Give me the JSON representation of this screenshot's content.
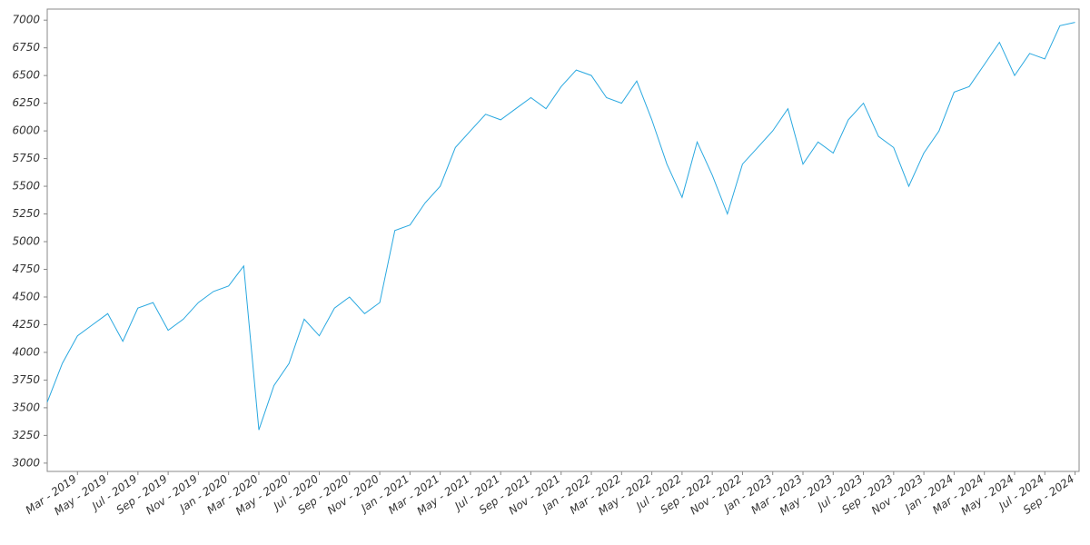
{
  "chart_data": {
    "type": "line",
    "color": "#29a8e0",
    "x": [
      "2019-01",
      "2019-02",
      "2019-03",
      "2019-04",
      "2019-05",
      "2019-06",
      "2019-07",
      "2019-08",
      "2019-09",
      "2019-10",
      "2019-11",
      "2019-12",
      "2020-01",
      "2020-02",
      "2020-03",
      "2020-04",
      "2020-05",
      "2020-06",
      "2020-07",
      "2020-08",
      "2020-09",
      "2020-10",
      "2020-11",
      "2020-12",
      "2021-01",
      "2021-02",
      "2021-03",
      "2021-04",
      "2021-05",
      "2021-06",
      "2021-07",
      "2021-08",
      "2021-09",
      "2021-10",
      "2021-11",
      "2021-12",
      "2022-01",
      "2022-02",
      "2022-03",
      "2022-04",
      "2022-05",
      "2022-06",
      "2022-07",
      "2022-08",
      "2022-09",
      "2022-10",
      "2022-11",
      "2022-12",
      "2023-01",
      "2023-02",
      "2023-03",
      "2023-04",
      "2023-05",
      "2023-06",
      "2023-07",
      "2023-08",
      "2023-09",
      "2023-10",
      "2023-11",
      "2023-12",
      "2024-01",
      "2024-02",
      "2024-03",
      "2024-04",
      "2024-05",
      "2024-06",
      "2024-07",
      "2024-08",
      "2024-09"
    ],
    "values": [
      3550,
      3900,
      4150,
      4250,
      4350,
      4100,
      4400,
      4450,
      4200,
      4300,
      4450,
      4550,
      4600,
      4780,
      3300,
      3700,
      3900,
      4300,
      4150,
      4400,
      4500,
      4350,
      4450,
      5100,
      5150,
      5350,
      5500,
      5850,
      6000,
      6150,
      6100,
      6200,
      6300,
      6200,
      6400,
      6550,
      6500,
      6300,
      6250,
      6450,
      6100,
      5700,
      5400,
      5900,
      5600,
      5250,
      5700,
      5850,
      6000,
      6200,
      5700,
      5900,
      5800,
      6100,
      6250,
      5950,
      5850,
      5500,
      5800,
      6000,
      6350,
      6400,
      6600,
      6800,
      6500,
      6700,
      6650,
      6950,
      6980
    ],
    "ylim": [
      2925,
      7100
    ],
    "yticks": [
      3000,
      3250,
      3500,
      3750,
      4000,
      4250,
      4500,
      4750,
      5000,
      5250,
      5500,
      5750,
      6000,
      6250,
      6500,
      6750,
      7000
    ],
    "xticks": [
      {
        "value": "2019-03",
        "label": "Mar - 2019"
      },
      {
        "value": "2019-05",
        "label": "May - 2019"
      },
      {
        "value": "2019-07",
        "label": "Jul - 2019"
      },
      {
        "value": "2019-09",
        "label": "Sep - 2019"
      },
      {
        "value": "2019-11",
        "label": "Nov - 2019"
      },
      {
        "value": "2020-01",
        "label": "Jan - 2020"
      },
      {
        "value": "2020-03",
        "label": "Mar - 2020"
      },
      {
        "value": "2020-05",
        "label": "May - 2020"
      },
      {
        "value": "2020-07",
        "label": "Jul - 2020"
      },
      {
        "value": "2020-09",
        "label": "Sep - 2020"
      },
      {
        "value": "2020-11",
        "label": "Nov - 2020"
      },
      {
        "value": "2021-01",
        "label": "Jan - 2021"
      },
      {
        "value": "2021-03",
        "label": "Mar - 2021"
      },
      {
        "value": "2021-05",
        "label": "May - 2021"
      },
      {
        "value": "2021-07",
        "label": "Jul - 2021"
      },
      {
        "value": "2021-09",
        "label": "Sep - 2021"
      },
      {
        "value": "2021-11",
        "label": "Nov - 2021"
      },
      {
        "value": "2022-01",
        "label": "Jan - 2022"
      },
      {
        "value": "2022-03",
        "label": "Mar - 2022"
      },
      {
        "value": "2022-05",
        "label": "May - 2022"
      },
      {
        "value": "2022-07",
        "label": "Jul - 2022"
      },
      {
        "value": "2022-09",
        "label": "Sep - 2022"
      },
      {
        "value": "2022-11",
        "label": "Nov - 2022"
      },
      {
        "value": "2023-01",
        "label": "Jan - 2023"
      },
      {
        "value": "2023-03",
        "label": "Mar - 2023"
      },
      {
        "value": "2023-05",
        "label": "May - 2023"
      },
      {
        "value": "2023-07",
        "label": "Jul - 2023"
      },
      {
        "value": "2023-09",
        "label": "Sep - 2023"
      },
      {
        "value": "2023-11",
        "label": "Nov - 2023"
      },
      {
        "value": "2024-01",
        "label": "Jan - 2024"
      },
      {
        "value": "2024-03",
        "label": "Mar - 2024"
      },
      {
        "value": "2024-05",
        "label": "May - 2024"
      },
      {
        "value": "2024-07",
        "label": "Jul - 2024"
      },
      {
        "value": "2024-09",
        "label": "Sep - 2024"
      }
    ]
  }
}
